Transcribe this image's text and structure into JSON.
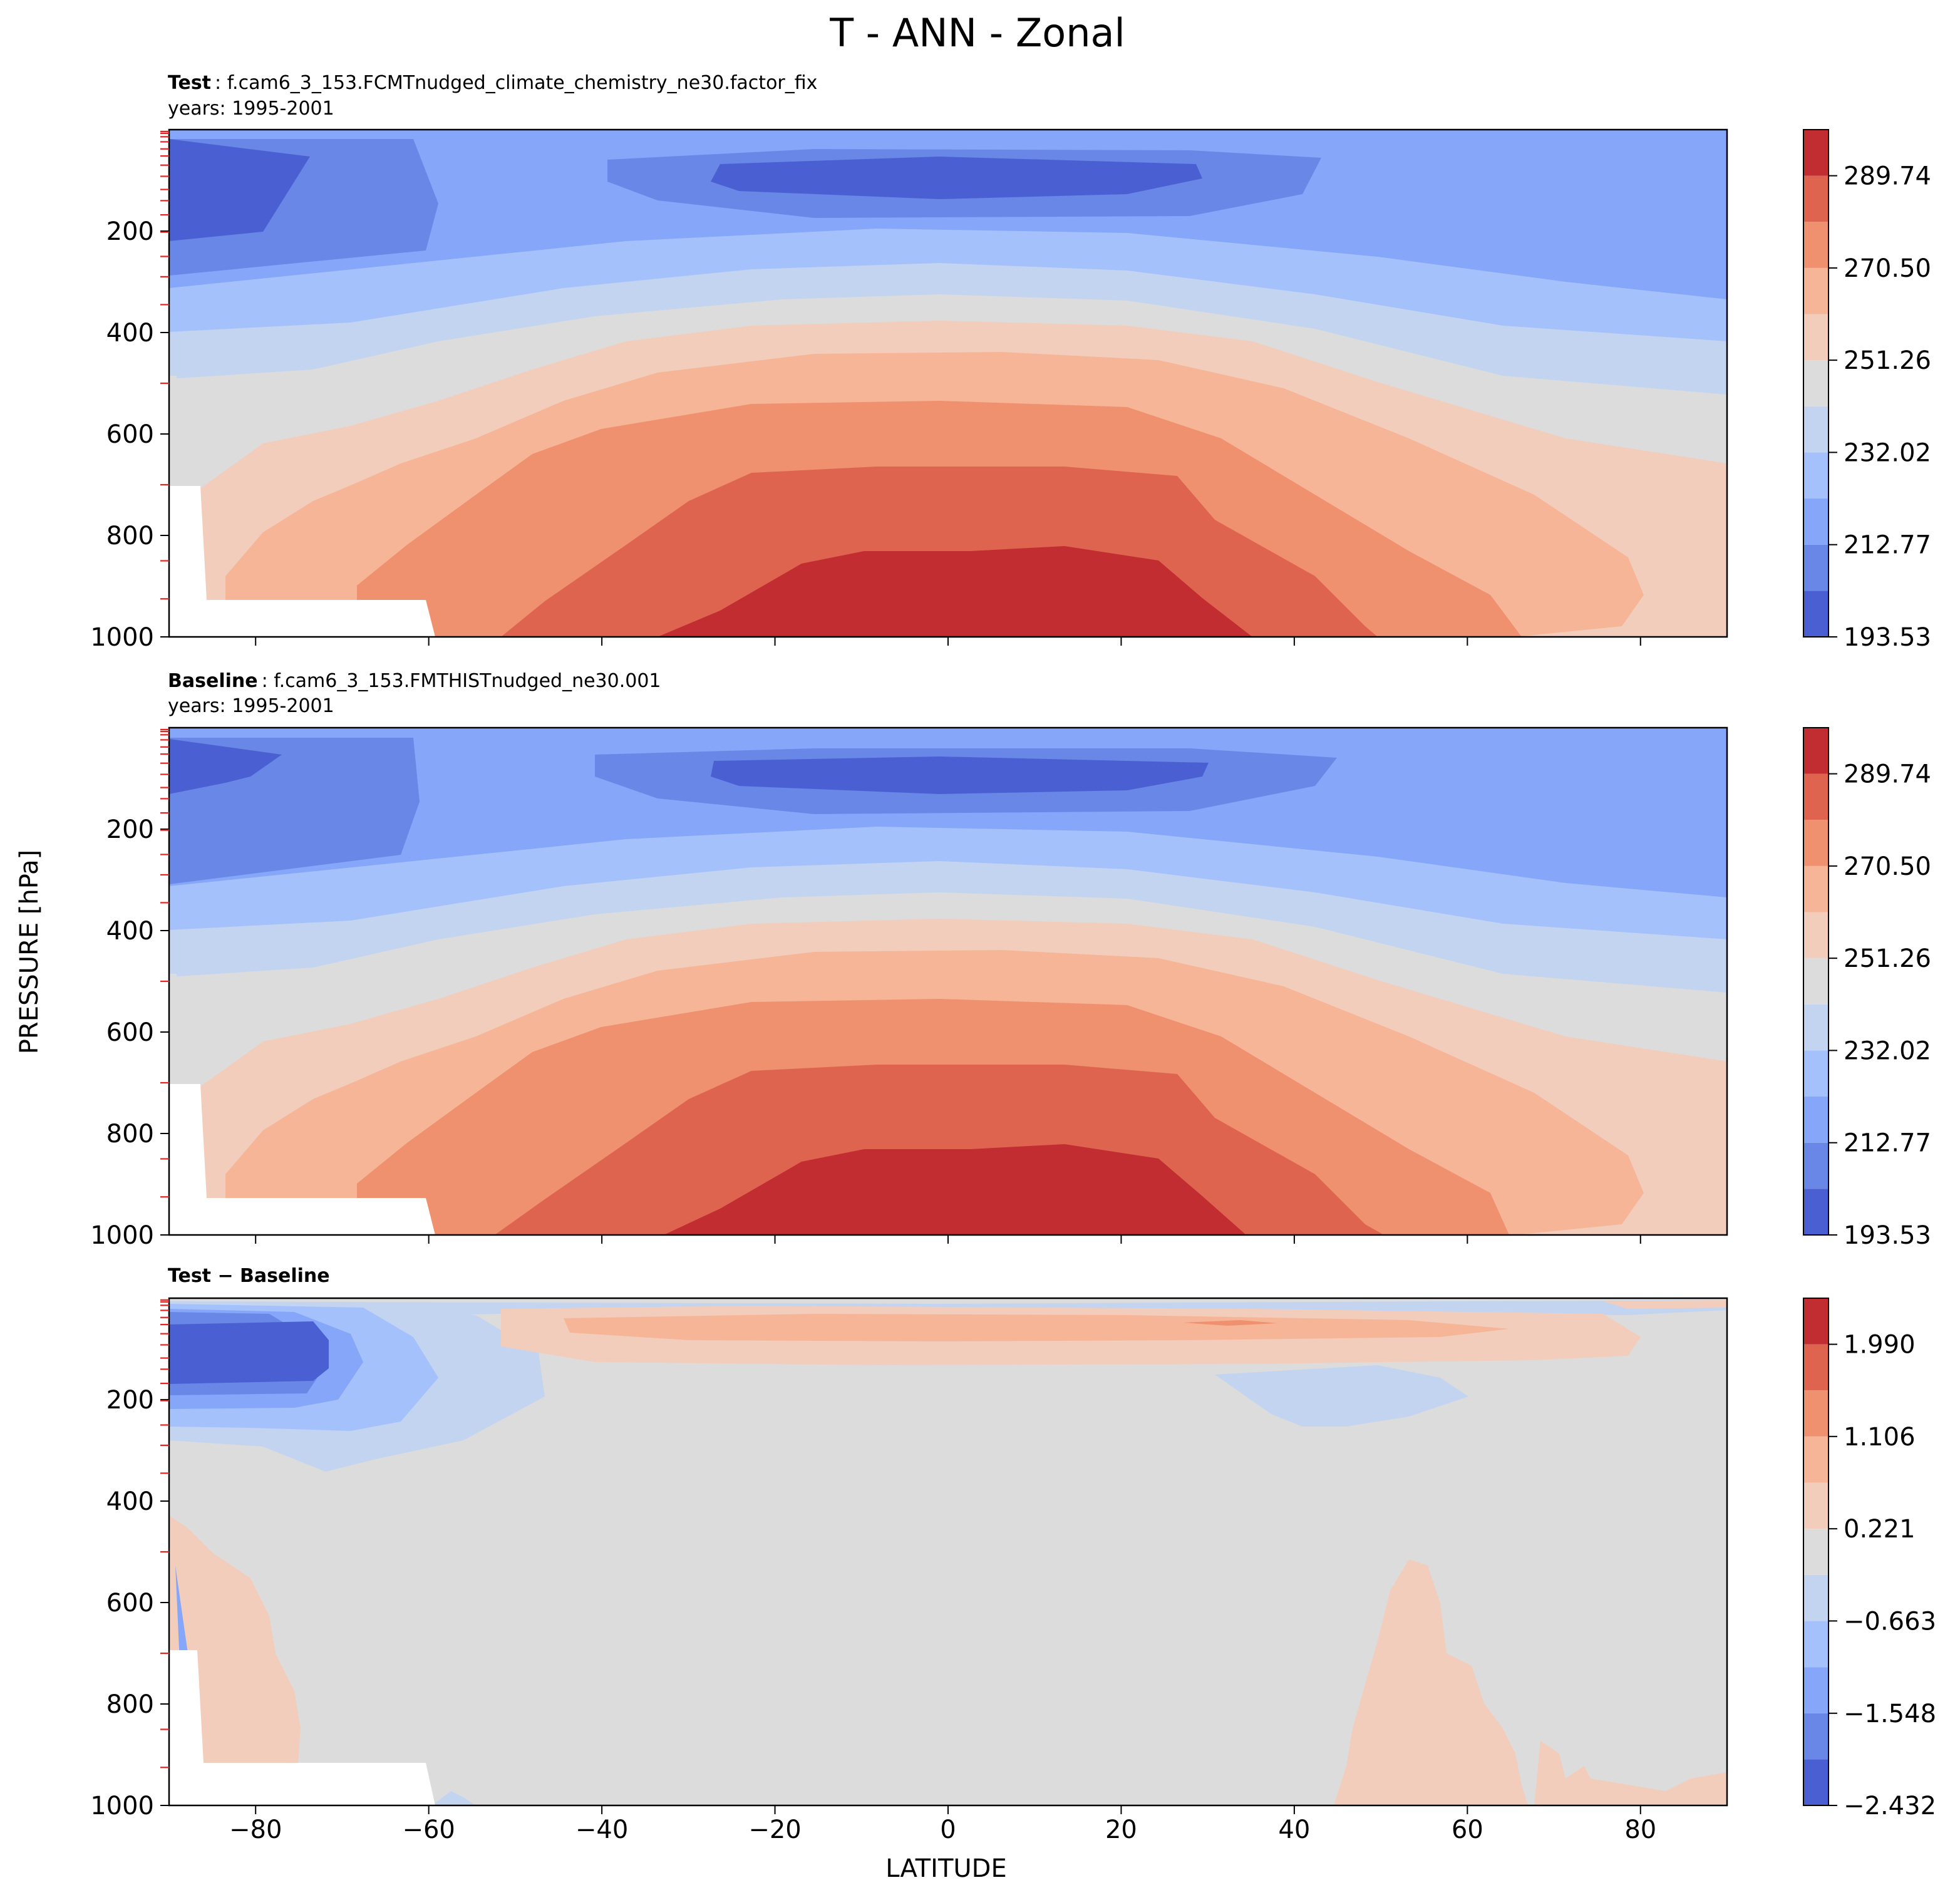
{
  "figure": {
    "title": "T - ANN - Zonal",
    "xlabel": "LATITUDE",
    "ylabel": "PRESSURE [hPa]"
  },
  "chart_data": [
    {
      "type": "contour",
      "panel": "test",
      "title_bold": "Test",
      "title_rest": ": f.cam6_3_153.FCMTnudged_climate_chemistry_ne30.factor_fix",
      "subtitle": "years: 1995-2001",
      "xlim": [
        -90,
        90
      ],
      "ylim": [
        1000,
        0
      ],
      "x_ticks": [
        -80,
        -60,
        -40,
        -20,
        0,
        20,
        40,
        60,
        80
      ],
      "y_ticks": [
        200,
        400,
        600,
        800,
        1000
      ],
      "colorbar_ticks": [
        "193.53",
        "212.77",
        "232.02",
        "251.26",
        "270.50",
        "289.74"
      ],
      "levels": [
        193.53,
        203.15,
        212.77,
        222.4,
        232.02,
        241.64,
        251.26,
        260.88,
        270.5,
        280.12,
        289.74,
        299.36
      ],
      "colors": [
        "#4a5fd1",
        "#6887e7",
        "#85a6f9",
        "#a5c1fc",
        "#c3d4f1",
        "#dcdcdc",
        "#f2cdbc",
        "#f6b597",
        "#ef906f",
        "#de6450",
        "#c12d30"
      ]
    },
    {
      "type": "contour",
      "panel": "baseline",
      "title_bold": "Baseline",
      "title_rest": ": f.cam6_3_153.FMTHISTnudged_ne30.001",
      "subtitle": "years: 1995-2001",
      "xlim": [
        -90,
        90
      ],
      "ylim": [
        1000,
        0
      ],
      "x_ticks": [
        -80,
        -60,
        -40,
        -20,
        0,
        20,
        40,
        60,
        80
      ],
      "y_ticks": [
        200,
        400,
        600,
        800,
        1000
      ],
      "colorbar_ticks": [
        "193.53",
        "212.77",
        "232.02",
        "251.26",
        "270.50",
        "289.74"
      ],
      "levels": [
        193.53,
        203.15,
        212.77,
        222.4,
        232.02,
        241.64,
        251.26,
        260.88,
        270.5,
        280.12,
        289.74,
        299.36
      ],
      "colors": [
        "#4a5fd1",
        "#6887e7",
        "#85a6f9",
        "#a5c1fc",
        "#c3d4f1",
        "#dcdcdc",
        "#f2cdbc",
        "#f6b597",
        "#ef906f",
        "#de6450",
        "#c12d30"
      ]
    },
    {
      "type": "contour",
      "panel": "difference",
      "title_bold": "Test − Baseline",
      "title_rest": "",
      "subtitle": "",
      "xlim": [
        -90,
        90
      ],
      "ylim": [
        1000,
        0
      ],
      "x_ticks": [
        -80,
        -60,
        -40,
        -20,
        0,
        20,
        40,
        60,
        80
      ],
      "y_ticks": [
        200,
        400,
        600,
        800,
        1000
      ],
      "colorbar_ticks": [
        "−2.432",
        "−1.548",
        "−0.663",
        "0.221",
        "1.106",
        "1.990"
      ],
      "levels": [
        -2.432,
        -1.99,
        -1.548,
        -1.106,
        -0.663,
        -0.221,
        0.221,
        0.663,
        1.106,
        1.548,
        1.99,
        2.432
      ],
      "colors": [
        "#4a5fd1",
        "#6887e7",
        "#85a6f9",
        "#a5c1fc",
        "#c3d4f1",
        "#dcdcdc",
        "#f2cdbc",
        "#f6b597",
        "#ef906f",
        "#de6450",
        "#c12d30"
      ]
    }
  ]
}
